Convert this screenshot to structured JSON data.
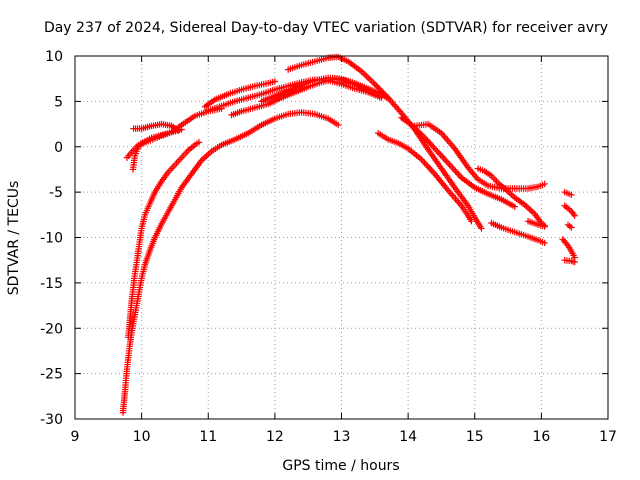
{
  "chart_data": {
    "type": "scatter",
    "title": "Day 237 of 2024, Sidereal Day-to-day VTEC variation (SDTVAR) for receiver avry",
    "xlabel": "GPS time / hours",
    "ylabel": "SDTVAR / TECUs",
    "xlim": [
      9,
      17
    ],
    "ylim": [
      -30,
      10
    ],
    "xticks": [
      "9",
      "10",
      "11",
      "12",
      "13",
      "14",
      "15",
      "16",
      "17"
    ],
    "yticks": [
      "-30",
      "-25",
      "-20",
      "-15",
      "-10",
      "-5",
      "0",
      "5",
      "10"
    ],
    "grid": true,
    "marker": "+",
    "color": "#ff0000",
    "series": [
      {
        "name": "track-1",
        "points": [
          [
            9.72,
            -29.3
          ],
          [
            9.75,
            -27
          ],
          [
            9.78,
            -24.5
          ],
          [
            9.82,
            -22
          ],
          [
            9.86,
            -20
          ],
          [
            9.9,
            -18.5
          ],
          [
            9.95,
            -16.5
          ],
          [
            10.0,
            -14.5
          ],
          [
            10.05,
            -13
          ],
          [
            10.12,
            -11.5
          ],
          [
            10.2,
            -10
          ],
          [
            10.3,
            -8.5
          ],
          [
            10.45,
            -6.5
          ],
          [
            10.6,
            -4.5
          ],
          [
            10.75,
            -3
          ],
          [
            10.9,
            -1.5
          ],
          [
            11.05,
            -0.5
          ],
          [
            11.2,
            0.2
          ],
          [
            11.4,
            0.8
          ],
          [
            11.6,
            1.5
          ],
          [
            11.8,
            2.4
          ],
          [
            12.0,
            3.1
          ],
          [
            12.2,
            3.6
          ],
          [
            12.4,
            3.8
          ],
          [
            12.6,
            3.6
          ],
          [
            12.8,
            3.1
          ],
          [
            12.95,
            2.4
          ]
        ]
      },
      {
        "name": "track-2",
        "points": [
          [
            9.8,
            -21
          ],
          [
            9.85,
            -17
          ],
          [
            9.9,
            -14
          ],
          [
            9.95,
            -11.5
          ],
          [
            10.0,
            -9
          ],
          [
            10.05,
            -7.5
          ],
          [
            10.12,
            -6.3
          ],
          [
            10.2,
            -5
          ],
          [
            10.3,
            -3.8
          ],
          [
            10.4,
            -2.8
          ],
          [
            10.5,
            -2
          ],
          [
            10.6,
            -1.2
          ],
          [
            10.7,
            -0.4
          ],
          [
            10.8,
            0.2
          ],
          [
            10.86,
            0.5
          ]
        ]
      },
      {
        "name": "track-3",
        "points": [
          [
            9.87,
            -2.5
          ],
          [
            9.9,
            -1
          ],
          [
            9.95,
            0
          ],
          [
            10.0,
            0.3
          ],
          [
            10.1,
            0.6
          ],
          [
            10.2,
            0.9
          ],
          [
            10.3,
            1.2
          ],
          [
            10.45,
            1.6
          ],
          [
            10.6,
            2.4
          ],
          [
            10.8,
            3.4
          ],
          [
            11.0,
            3.9
          ],
          [
            11.2,
            4.2
          ]
        ]
      },
      {
        "name": "track-4",
        "points": [
          [
            9.78,
            -1.2
          ],
          [
            9.85,
            -0.6
          ],
          [
            9.95,
            0.2
          ],
          [
            10.05,
            0.6
          ],
          [
            10.15,
            1
          ],
          [
            10.25,
            1.2
          ],
          [
            10.35,
            1.4
          ],
          [
            10.45,
            1.6
          ],
          [
            10.6,
            1.9
          ]
        ]
      },
      {
        "name": "track-5",
        "points": [
          [
            9.88,
            2.0
          ],
          [
            10.0,
            2.0
          ],
          [
            10.15,
            2.3
          ],
          [
            10.3,
            2.5
          ],
          [
            10.45,
            2.3
          ],
          [
            10.55,
            1.8
          ]
        ]
      },
      {
        "name": "track-6",
        "points": [
          [
            10.95,
            4.4
          ],
          [
            11.1,
            5.2
          ],
          [
            11.3,
            5.8
          ],
          [
            11.5,
            6.3
          ],
          [
            11.7,
            6.7
          ],
          [
            11.9,
            7.0
          ],
          [
            12.0,
            7.2
          ]
        ]
      },
      {
        "name": "track-7",
        "points": [
          [
            11.0,
            4.0
          ],
          [
            11.2,
            4.5
          ],
          [
            11.4,
            5.0
          ],
          [
            11.6,
            5.4
          ],
          [
            11.8,
            5.8
          ],
          [
            12.0,
            6.3
          ],
          [
            12.2,
            6.7
          ],
          [
            12.4,
            7.1
          ],
          [
            12.6,
            7.4
          ],
          [
            12.8,
            7.3
          ],
          [
            13.0,
            6.9
          ],
          [
            13.2,
            6.4
          ],
          [
            13.4,
            6.0
          ],
          [
            13.6,
            5.4
          ]
        ]
      },
      {
        "name": "track-8",
        "points": [
          [
            11.35,
            3.5
          ],
          [
            11.5,
            3.9
          ],
          [
            11.7,
            4.3
          ],
          [
            11.9,
            4.7
          ],
          [
            12.1,
            5.4
          ],
          [
            12.3,
            6.0
          ],
          [
            12.5,
            6.6
          ],
          [
            12.7,
            7.1
          ],
          [
            12.9,
            7.5
          ],
          [
            13.05,
            7.3
          ],
          [
            13.2,
            6.9
          ],
          [
            13.4,
            6.2
          ]
        ]
      },
      {
        "name": "track-9",
        "points": [
          [
            11.8,
            5.0
          ],
          [
            12.0,
            5.6
          ],
          [
            12.2,
            6.2
          ],
          [
            12.4,
            6.8
          ],
          [
            12.6,
            7.3
          ],
          [
            12.8,
            7.6
          ],
          [
            13.0,
            7.5
          ],
          [
            13.2,
            7.0
          ],
          [
            13.4,
            6.4
          ],
          [
            13.6,
            5.8
          ],
          [
            13.7,
            5.3
          ]
        ]
      },
      {
        "name": "track-10",
        "points": [
          [
            12.2,
            8.5
          ],
          [
            12.4,
            9.0
          ],
          [
            12.6,
            9.4
          ],
          [
            12.8,
            9.8
          ],
          [
            12.95,
            9.9
          ],
          [
            13.1,
            9.4
          ],
          [
            13.3,
            8.3
          ],
          [
            13.5,
            6.9
          ],
          [
            13.7,
            5.4
          ],
          [
            13.9,
            3.7
          ],
          [
            14.1,
            1.9
          ],
          [
            14.3,
            -0.3
          ],
          [
            14.5,
            -2.4
          ],
          [
            14.7,
            -4.5
          ],
          [
            14.9,
            -6.5
          ],
          [
            15.0,
            -7.8
          ],
          [
            15.1,
            -9
          ]
        ]
      },
      {
        "name": "track-11",
        "points": [
          [
            13.55,
            1.5
          ],
          [
            13.7,
            0.8
          ],
          [
            13.85,
            0.4
          ],
          [
            14.0,
            -0.2
          ],
          [
            14.2,
            -1.4
          ],
          [
            14.4,
            -3.0
          ],
          [
            14.6,
            -4.8
          ],
          [
            14.8,
            -6.5
          ],
          [
            14.9,
            -7.6
          ],
          [
            14.95,
            -8.2
          ]
        ]
      },
      {
        "name": "track-12",
        "points": [
          [
            13.9,
            3.2
          ],
          [
            14.05,
            2.4
          ],
          [
            14.25,
            1.0
          ],
          [
            14.4,
            -0.2
          ],
          [
            14.6,
            -1.8
          ],
          [
            14.8,
            -3.4
          ],
          [
            15.0,
            -4.5
          ],
          [
            15.2,
            -5.2
          ],
          [
            15.4,
            -5.8
          ],
          [
            15.6,
            -6.6
          ]
        ]
      },
      {
        "name": "track-13",
        "points": [
          [
            14.1,
            2.3
          ],
          [
            14.3,
            2.5
          ],
          [
            14.5,
            1.5
          ],
          [
            14.7,
            -0.2
          ],
          [
            14.9,
            -2.3
          ],
          [
            15.05,
            -3.6
          ],
          [
            15.2,
            -4.3
          ],
          [
            15.4,
            -4.6
          ],
          [
            15.6,
            -4.6
          ],
          [
            15.8,
            -4.6
          ],
          [
            15.95,
            -4.4
          ],
          [
            16.05,
            -4.1
          ]
        ]
      },
      {
        "name": "track-14",
        "points": [
          [
            15.05,
            -2.4
          ],
          [
            15.15,
            -2.7
          ],
          [
            15.25,
            -3.2
          ],
          [
            15.35,
            -4.0
          ],
          [
            15.45,
            -4.6
          ],
          [
            15.6,
            -5.6
          ],
          [
            15.75,
            -6.4
          ],
          [
            15.9,
            -7.4
          ],
          [
            16.0,
            -8.4
          ],
          [
            16.05,
            -8.7
          ]
        ]
      },
      {
        "name": "track-15",
        "points": [
          [
            15.25,
            -8.4
          ],
          [
            15.4,
            -8.9
          ],
          [
            15.6,
            -9.4
          ],
          [
            15.8,
            -9.9
          ],
          [
            15.95,
            -10.3
          ],
          [
            16.05,
            -10.6
          ]
        ]
      },
      {
        "name": "track-16",
        "points": [
          [
            15.8,
            -8.2
          ],
          [
            15.95,
            -8.6
          ],
          [
            16.05,
            -8.8
          ]
        ]
      },
      {
        "name": "track-17",
        "points": [
          [
            16.35,
            -5.0
          ],
          [
            16.45,
            -5.3
          ]
        ]
      },
      {
        "name": "track-18",
        "points": [
          [
            16.35,
            -6.5
          ],
          [
            16.45,
            -7.1
          ],
          [
            16.5,
            -7.6
          ]
        ]
      },
      {
        "name": "track-19",
        "points": [
          [
            16.4,
            -8.6
          ],
          [
            16.45,
            -8.9
          ]
        ]
      },
      {
        "name": "track-20",
        "points": [
          [
            16.32,
            -10.2
          ],
          [
            16.4,
            -10.9
          ],
          [
            16.45,
            -11.5
          ],
          [
            16.5,
            -12.2
          ]
        ]
      },
      {
        "name": "track-21",
        "points": [
          [
            16.35,
            -12.5
          ],
          [
            16.45,
            -12.6
          ],
          [
            16.5,
            -12.7
          ]
        ]
      }
    ]
  }
}
